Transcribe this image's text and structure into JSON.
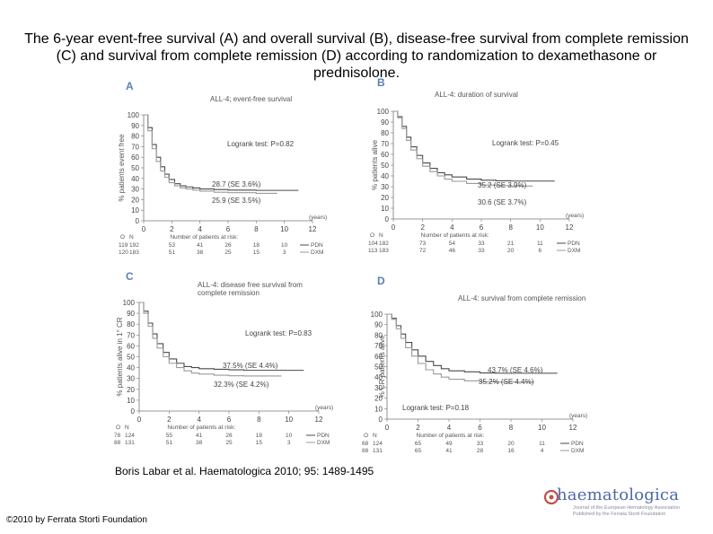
{
  "slide": {
    "title": "The 6-year event-free survival (A) and overall survival (B), disease-free survival from complete remission (C) and survival from complete remission (D) according to randomization to dexamethasone or prednisolone.",
    "citation": "Boris Labar et al. Haematologica 2010; 95: 1489-1495",
    "copyright": "©2010 by Ferrata Storti Foundation",
    "logo": {
      "name": "haematologica",
      "subtitle_1": "Journal of the European Hematology Association",
      "subtitle_2": "Published by the Ferrata Storti Foundation"
    }
  },
  "colors": {
    "pdn": "#4a4a4a",
    "dxm": "#9a9a9a",
    "axis": "#777777",
    "panel_letter": "#5a7fb5"
  },
  "chart_data": [
    {
      "panel": "A",
      "type": "line",
      "title": "ALL-4; event-free survival",
      "ylabel": "% patients event free",
      "xlabel": "(years)",
      "x_ticks": [
        0,
        2,
        4,
        6,
        8,
        10,
        12
      ],
      "y_ticks": [
        0,
        10,
        20,
        30,
        40,
        50,
        60,
        70,
        80,
        90,
        100
      ],
      "xlim": [
        0,
        12
      ],
      "ylim": [
        0,
        100
      ],
      "logrank": "Logrank test: P=0.82",
      "annotations": [
        "28.7 (SE 3.6%)",
        "25.9 (SE 3.5%)"
      ],
      "risk_header": {
        "o": "O",
        "n": "N",
        "label": "Number of patients at risk:"
      },
      "series": [
        {
          "name": "PDN",
          "o": 119,
          "n": 192,
          "at_risk": [
            192,
            53,
            41,
            26,
            18,
            10
          ],
          "x": [
            0,
            0.3,
            0.6,
            0.9,
            1.2,
            1.5,
            1.8,
            2.2,
            2.6,
            3,
            3.5,
            4,
            5,
            6,
            8,
            10,
            11
          ],
          "y": [
            100,
            88,
            72,
            60,
            51,
            44,
            39,
            35,
            33,
            32,
            31,
            30,
            29.5,
            29,
            28.7,
            28.7,
            28.7
          ]
        },
        {
          "name": "DXM",
          "o": 120,
          "n": 183,
          "at_risk": [
            183,
            51,
            38,
            25,
            15,
            3
          ],
          "x": [
            0,
            0.3,
            0.6,
            0.9,
            1.2,
            1.5,
            1.8,
            2.2,
            2.6,
            3,
            3.5,
            4,
            5,
            6,
            8,
            9.5
          ],
          "y": [
            100,
            85,
            68,
            56,
            47,
            41,
            36,
            33,
            31,
            30,
            29,
            28,
            27,
            26.5,
            25.9,
            25.9
          ]
        }
      ]
    },
    {
      "panel": "B",
      "type": "line",
      "title": "ALL-4: duration of survival",
      "ylabel": "% patients alive",
      "xlabel": "(years)",
      "x_ticks": [
        0,
        2,
        4,
        6,
        8,
        10,
        12
      ],
      "y_ticks": [
        0,
        10,
        20,
        30,
        40,
        50,
        60,
        70,
        80,
        90,
        100
      ],
      "xlim": [
        0,
        12
      ],
      "ylim": [
        0,
        100
      ],
      "logrank": "Logrank test: P=0.45",
      "annotations": [
        "35.2 (SE 3.9%)",
        "30.6 (SE 3.7%)"
      ],
      "risk_header": {
        "o": "O",
        "n": "N",
        "label": "Number of patients at risk:"
      },
      "series": [
        {
          "name": "PDN",
          "o": 104,
          "n": 182,
          "at_risk": [
            182,
            73,
            54,
            33,
            21,
            11
          ],
          "x": [
            0,
            0.3,
            0.6,
            0.9,
            1.2,
            1.6,
            2,
            2.5,
            3,
            3.5,
            4,
            5,
            6,
            7,
            8,
            10,
            11
          ],
          "y": [
            100,
            95,
            86,
            76,
            67,
            59,
            52,
            47,
            43,
            41,
            39,
            37,
            36,
            35.5,
            35.2,
            35.2,
            35.2
          ]
        },
        {
          "name": "DXM",
          "o": 113,
          "n": 183,
          "at_risk": [
            183,
            72,
            46,
            33,
            20,
            6
          ],
          "x": [
            0,
            0.3,
            0.6,
            0.9,
            1.2,
            1.6,
            2,
            2.5,
            3,
            3.5,
            4,
            5,
            6,
            7,
            8,
            9.5
          ],
          "y": [
            100,
            94,
            84,
            73,
            64,
            56,
            49,
            44,
            40,
            37,
            35,
            33,
            31.5,
            31,
            30.6,
            30.6
          ]
        }
      ]
    },
    {
      "panel": "C",
      "type": "line",
      "title": "ALL-4: disease free survival from complete remission",
      "title_lines": [
        "ALL-4: disease free survival from",
        "complete remission"
      ],
      "ylabel": "% patients alive in 1° CR",
      "xlabel": "(years)",
      "x_ticks": [
        0,
        2,
        4,
        6,
        8,
        10,
        12
      ],
      "y_ticks": [
        0,
        10,
        20,
        30,
        40,
        50,
        60,
        70,
        80,
        90,
        100
      ],
      "xlim": [
        0,
        12
      ],
      "ylim": [
        0,
        100
      ],
      "logrank": "Logrank test: P=0.83",
      "annotations": [
        "37.5% (SE 4.4%)",
        "32.3% (SE 4.2%)"
      ],
      "risk_header": {
        "o": "O",
        "n": "N",
        "label": "Number of patients at risk:"
      },
      "series": [
        {
          "name": "PDN",
          "o": 78,
          "n": 124,
          "at_risk": [
            124,
            55,
            41,
            26,
            18,
            10
          ],
          "x": [
            0,
            0.3,
            0.6,
            0.9,
            1.2,
            1.6,
            2,
            2.5,
            3,
            3.5,
            4,
            5,
            6,
            7,
            8,
            10,
            11
          ],
          "y": [
            100,
            92,
            81,
            71,
            62,
            54,
            48,
            44,
            41,
            40,
            39,
            38.5,
            38,
            37.5,
            37.5,
            37.5,
            37.5
          ]
        },
        {
          "name": "DXM",
          "o": 88,
          "n": 131,
          "at_risk": [
            131,
            51,
            38,
            25,
            15,
            3
          ],
          "x": [
            0,
            0.3,
            0.6,
            0.9,
            1.2,
            1.6,
            2,
            2.5,
            3,
            3.5,
            4,
            5,
            6,
            7,
            8,
            9.5
          ],
          "y": [
            100,
            90,
            78,
            67,
            58,
            50,
            44,
            40,
            37,
            35,
            34,
            33,
            32.5,
            32.3,
            32.3,
            32.3
          ]
        }
      ]
    },
    {
      "panel": "D",
      "type": "line",
      "title": "ALL-4: survival from complete remission",
      "ylabel": "% CR patients alive",
      "xlabel": "(years)",
      "x_ticks": [
        0,
        2,
        4,
        6,
        8,
        10,
        12
      ],
      "y_ticks": [
        0,
        10,
        20,
        30,
        40,
        50,
        60,
        70,
        80,
        90,
        100
      ],
      "xlim": [
        0,
        12
      ],
      "ylim": [
        0,
        100
      ],
      "logrank": "Logrank test: P=0.18",
      "annotations": [
        "43.7% (SE 4.6%)",
        "35.2% (SE 4.4%)"
      ],
      "risk_header": {
        "o": "O",
        "n": "N",
        "label": "Number of patients at risk:"
      },
      "series": [
        {
          "name": "PDN",
          "o": 68,
          "n": 124,
          "at_risk": [
            124,
            65,
            49,
            33,
            20,
            11
          ],
          "x": [
            0,
            0.3,
            0.6,
            0.9,
            1.2,
            1.6,
            2,
            2.5,
            3,
            3.5,
            4,
            5,
            6,
            7,
            8,
            10,
            11
          ],
          "y": [
            100,
            96,
            89,
            81,
            73,
            66,
            60,
            55,
            51,
            48,
            46,
            45,
            44,
            43.7,
            43.7,
            43.7,
            43.7
          ]
        },
        {
          "name": "DXM",
          "o": 88,
          "n": 131,
          "at_risk": [
            131,
            65,
            41,
            28,
            16,
            4
          ],
          "x": [
            0,
            0.3,
            0.6,
            0.9,
            1.2,
            1.6,
            2,
            2.5,
            3,
            3.5,
            4,
            5,
            6,
            7,
            8,
            9.5
          ],
          "y": [
            100,
            95,
            86,
            77,
            68,
            60,
            53,
            47,
            43,
            40,
            38,
            36.5,
            35.5,
            35.2,
            35.2,
            35.2
          ]
        }
      ]
    }
  ]
}
